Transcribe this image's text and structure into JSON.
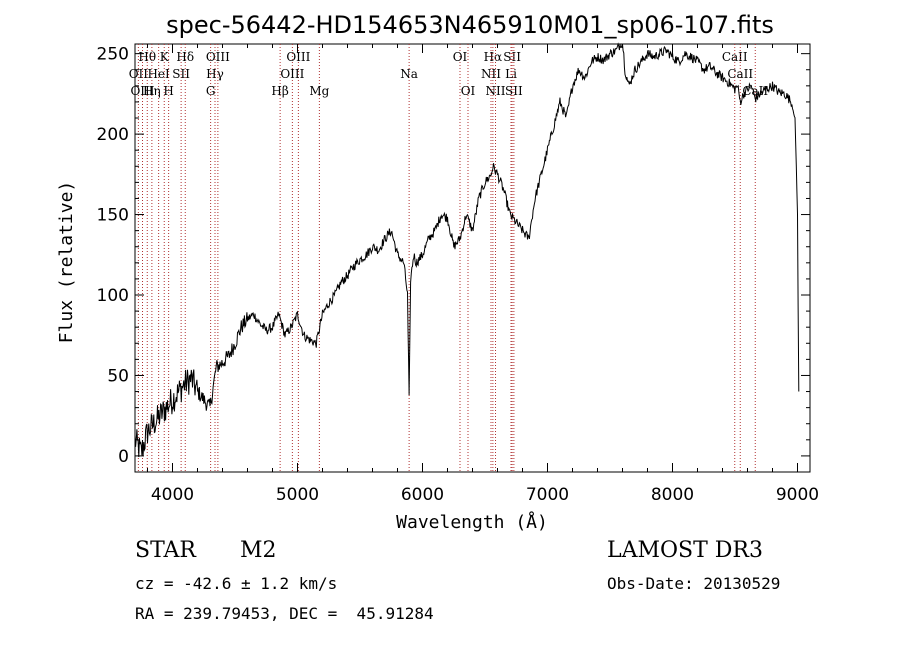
{
  "chart_data": {
    "type": "line",
    "title": "spec-56442-HD154653N465910M01_sp06-107.fits",
    "xlabel": "Wavelength (Å)",
    "ylabel": "Flux (relative)",
    "xlim": [
      3700,
      9100
    ],
    "ylim": [
      -10,
      256
    ],
    "xticks": [
      4000,
      5000,
      6000,
      7000,
      8000,
      9000
    ],
    "yticks": [
      0,
      50,
      100,
      150,
      200,
      250
    ],
    "series": [
      {
        "name": "flux",
        "x": [
          3700,
          3750,
          3800,
          3850,
          3900,
          3950,
          4000,
          4050,
          4100,
          4150,
          4200,
          4250,
          4300,
          4350,
          4400,
          4450,
          4500,
          4550,
          4600,
          4650,
          4700,
          4750,
          4800,
          4850,
          4900,
          4950,
          5000,
          5050,
          5100,
          5150,
          5200,
          5250,
          5300,
          5350,
          5400,
          5450,
          5500,
          5550,
          5600,
          5650,
          5700,
          5750,
          5800,
          5850,
          5880,
          5893,
          5905,
          5930,
          5950,
          6000,
          6050,
          6100,
          6150,
          6200,
          6250,
          6300,
          6350,
          6400,
          6450,
          6500,
          6550,
          6563,
          6600,
          6650,
          6700,
          6750,
          6800,
          6850,
          6900,
          6950,
          7000,
          7050,
          7100,
          7150,
          7200,
          7250,
          7300,
          7350,
          7400,
          7450,
          7500,
          7550,
          7600,
          7620,
          7650,
          7700,
          7750,
          7800,
          7850,
          7900,
          7950,
          8000,
          8050,
          8100,
          8150,
          8200,
          8250,
          8300,
          8350,
          8400,
          8450,
          8498,
          8520,
          8542,
          8570,
          8600,
          8630,
          8662,
          8700,
          8750,
          8800,
          8850,
          8900,
          8950,
          8980,
          9000,
          9010
        ],
        "y": [
          10,
          2,
          15,
          20,
          25,
          30,
          35,
          40,
          45,
          48,
          40,
          35,
          30,
          55,
          58,
          62,
          70,
          80,
          85,
          88,
          82,
          78,
          80,
          88,
          75,
          80,
          88,
          75,
          72,
          70,
          88,
          95,
          100,
          108,
          112,
          118,
          122,
          125,
          130,
          128,
          135,
          140,
          125,
          120,
          100,
          35,
          110,
          125,
          120,
          125,
          135,
          140,
          150,
          148,
          130,
          135,
          150,
          140,
          160,
          170,
          175,
          180,
          175,
          165,
          150,
          145,
          140,
          135,
          160,
          175,
          190,
          205,
          220,
          210,
          230,
          240,
          235,
          245,
          248,
          246,
          250,
          252,
          258,
          240,
          230,
          240,
          245,
          250,
          248,
          250,
          252,
          248,
          245,
          250,
          248,
          245,
          240,
          242,
          238,
          235,
          232,
          228,
          230,
          220,
          225,
          228,
          230,
          222,
          225,
          228,
          230,
          226,
          225,
          220,
          210,
          150,
          40
        ]
      }
    ],
    "line_markers": [
      {
        "label": "CaII",
        "x": 8498,
        "row": 1
      },
      {
        "label": "CaII",
        "x": 8542,
        "row": 2
      },
      {
        "label": "CaII",
        "x": 8662,
        "row": 3
      },
      {
        "label": "Hα",
        "x": 6563,
        "row": 1
      },
      {
        "label": "SII",
        "x": 6717,
        "row": 1
      },
      {
        "label": "NII",
        "x": 6548,
        "row": 2
      },
      {
        "label": "Li",
        "x": 6708,
        "row": 2
      },
      {
        "label": "NII",
        "x": 6584,
        "row": 3
      },
      {
        "label": "SII",
        "x": 6731,
        "row": 3
      },
      {
        "label": "OI",
        "x": 6300,
        "row": 1
      },
      {
        "label": "OI",
        "x": 6364,
        "row": 3
      },
      {
        "label": "Na",
        "x": 5893,
        "row": 2
      },
      {
        "label": "Mg",
        "x": 5175,
        "row": 3
      },
      {
        "label": "OIII",
        "x": 5007,
        "row": 1
      },
      {
        "label": "OIII",
        "x": 4959,
        "row": 2
      },
      {
        "label": "Hβ",
        "x": 4861,
        "row": 3
      },
      {
        "label": "OIII",
        "x": 4363,
        "row": 1
      },
      {
        "label": "Hγ",
        "x": 4340,
        "row": 2
      },
      {
        "label": "G",
        "x": 4305,
        "row": 3
      },
      {
        "label": "Hδ",
        "x": 4102,
        "row": 1
      },
      {
        "label": "K",
        "x": 3934,
        "row": 1
      },
      {
        "label": "Hθ",
        "x": 3798,
        "row": 1
      },
      {
        "label": "SII",
        "x": 4069,
        "row": 2
      },
      {
        "label": "HeI",
        "x": 3889,
        "row": 2
      },
      {
        "label": "OII",
        "x": 3727,
        "row": 2
      },
      {
        "label": "H",
        "x": 3969,
        "row": 3
      },
      {
        "label": "Hη",
        "x": 3835,
        "row": 3
      },
      {
        "label": "OIII",
        "x": 3760,
        "row": 3
      }
    ]
  },
  "footer": {
    "object_class": "STAR",
    "subclass": "M2",
    "survey": "LAMOST DR3",
    "cz_text": "cz = -42.6 ± 1.2 km/s",
    "obs_date": "Obs-Date: 20130529",
    "coords": "RA = 239.79453, DEC =  45.91284"
  }
}
